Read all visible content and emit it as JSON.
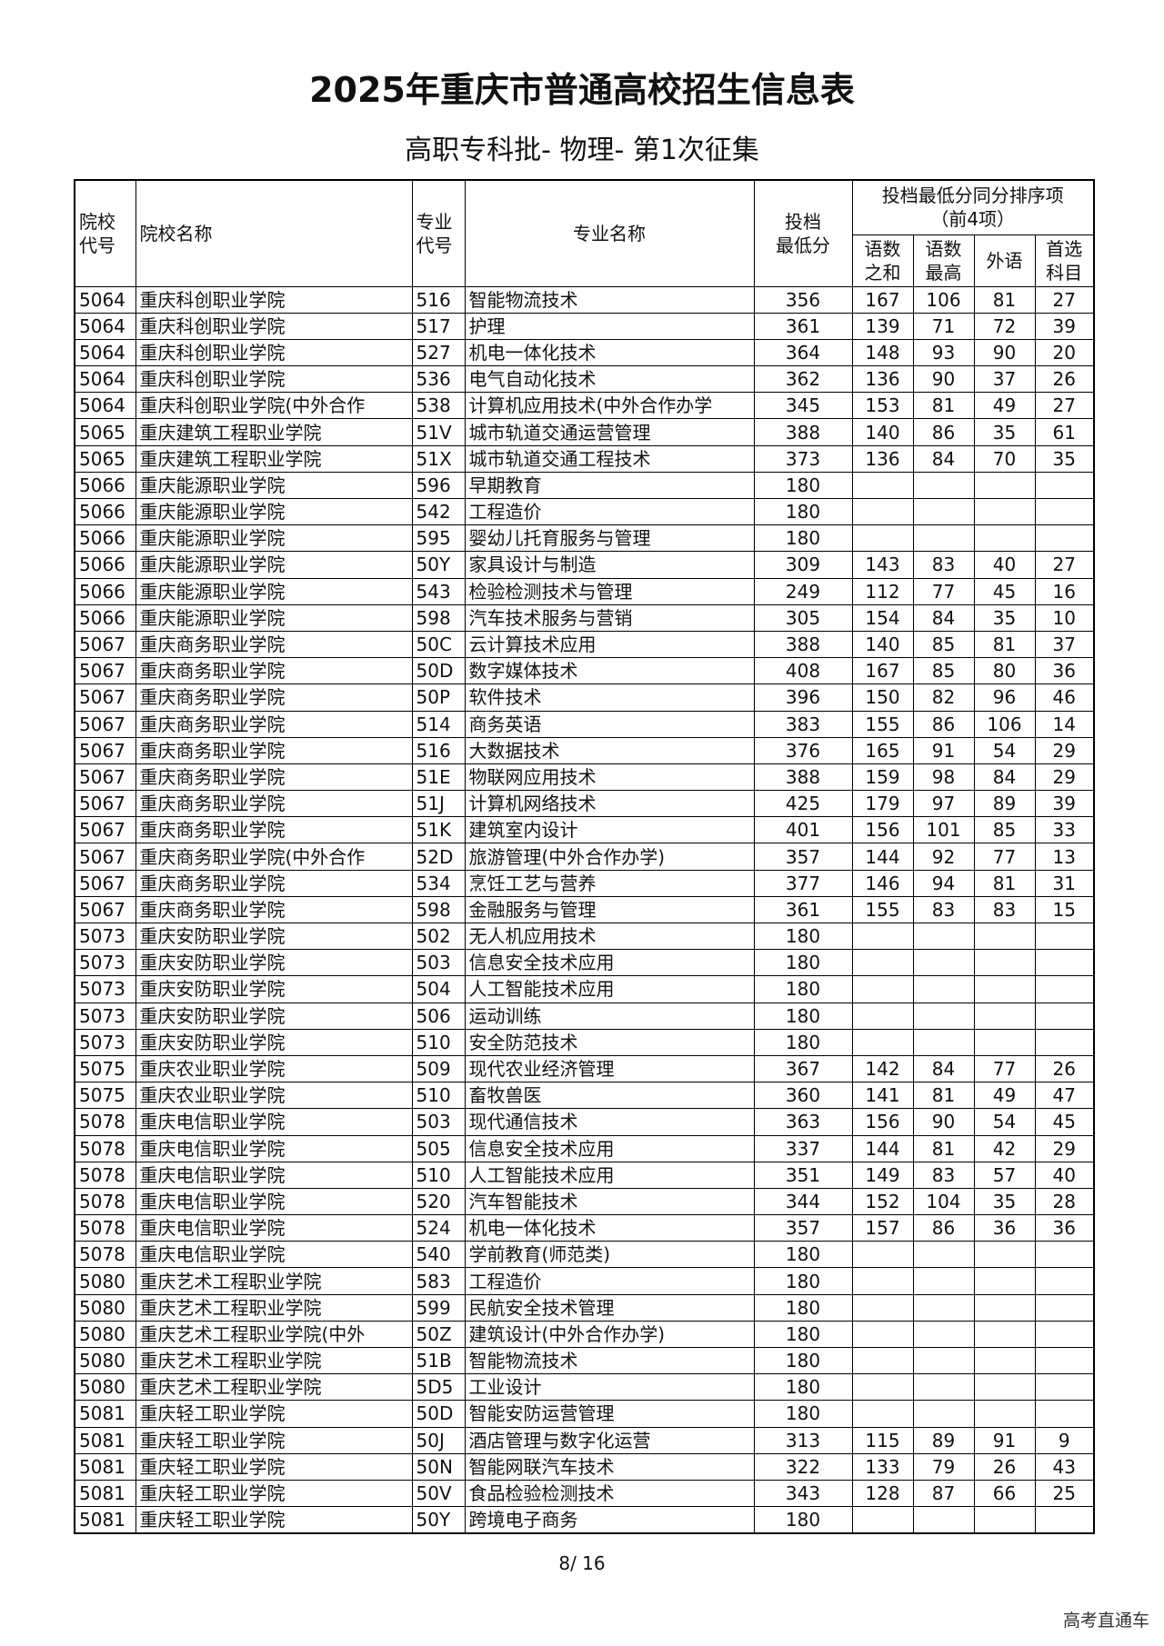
{
  "header": {
    "title": "2025年重庆市普通高校招生信息表",
    "subtitle": "高职专科批- 物理- 第1次征集"
  },
  "table": {
    "columns": {
      "school_code": "院校\n代号",
      "school_name": "院校名称",
      "major_code": "专业\n代号",
      "major_name": "专业名称",
      "min_score": "投档\n最低分",
      "tie_group": "投档最低分同分排序项\n（前4项）",
      "sum_cm": "语数\n之和",
      "max_cm": "语数\n最高",
      "foreign": "外语",
      "elective": "首选\n科目"
    },
    "rows": [
      [
        "5064",
        "重庆科创职业学院",
        "516",
        "智能物流技术",
        356,
        167,
        106,
        81,
        27
      ],
      [
        "5064",
        "重庆科创职业学院",
        "517",
        "护理",
        361,
        139,
        71,
        72,
        39
      ],
      [
        "5064",
        "重庆科创职业学院",
        "527",
        "机电一体化技术",
        364,
        148,
        93,
        90,
        20
      ],
      [
        "5064",
        "重庆科创职业学院",
        "536",
        "电气自动化技术",
        362,
        136,
        90,
        37,
        26
      ],
      [
        "5064",
        "重庆科创职业学院(中外合作",
        "538",
        "计算机应用技术(中外合作办学",
        345,
        153,
        81,
        49,
        27
      ],
      [
        "5065",
        "重庆建筑工程职业学院",
        "51V",
        "城市轨道交通运营管理",
        388,
        140,
        86,
        35,
        61
      ],
      [
        "5065",
        "重庆建筑工程职业学院",
        "51X",
        "城市轨道交通工程技术",
        373,
        136,
        84,
        70,
        35
      ],
      [
        "5066",
        "重庆能源职业学院",
        "596",
        "早期教育",
        180
      ],
      [
        "5066",
        "重庆能源职业学院",
        "542",
        "工程造价",
        180
      ],
      [
        "5066",
        "重庆能源职业学院",
        "595",
        "婴幼儿托育服务与管理",
        180
      ],
      [
        "5066",
        "重庆能源职业学院",
        "50Y",
        "家具设计与制造",
        309,
        143,
        83,
        40,
        27
      ],
      [
        "5066",
        "重庆能源职业学院",
        "543",
        "检验检测技术与管理",
        249,
        112,
        77,
        45,
        16
      ],
      [
        "5066",
        "重庆能源职业学院",
        "598",
        "汽车技术服务与营销",
        305,
        154,
        84,
        35,
        10
      ],
      [
        "5067",
        "重庆商务职业学院",
        "50C",
        "云计算技术应用",
        388,
        140,
        85,
        81,
        37
      ],
      [
        "5067",
        "重庆商务职业学院",
        "50D",
        "数字媒体技术",
        408,
        167,
        85,
        80,
        36
      ],
      [
        "5067",
        "重庆商务职业学院",
        "50P",
        "软件技术",
        396,
        150,
        82,
        96,
        46
      ],
      [
        "5067",
        "重庆商务职业学院",
        "514",
        "商务英语",
        383,
        155,
        86,
        106,
        14
      ],
      [
        "5067",
        "重庆商务职业学院",
        "516",
        "大数据技术",
        376,
        165,
        91,
        54,
        29
      ],
      [
        "5067",
        "重庆商务职业学院",
        "51E",
        "物联网应用技术",
        388,
        159,
        98,
        84,
        29
      ],
      [
        "5067",
        "重庆商务职业学院",
        "51J",
        "计算机网络技术",
        425,
        179,
        97,
        89,
        39
      ],
      [
        "5067",
        "重庆商务职业学院",
        "51K",
        "建筑室内设计",
        401,
        156,
        101,
        85,
        33
      ],
      [
        "5067",
        "重庆商务职业学院(中外合作",
        "52D",
        "旅游管理(中外合作办学)",
        357,
        144,
        92,
        77,
        13
      ],
      [
        "5067",
        "重庆商务职业学院",
        "534",
        "烹饪工艺与营养",
        377,
        146,
        94,
        81,
        31
      ],
      [
        "5067",
        "重庆商务职业学院",
        "598",
        "金融服务与管理",
        361,
        155,
        83,
        83,
        15
      ],
      [
        "5073",
        "重庆安防职业学院",
        "502",
        "无人机应用技术",
        180
      ],
      [
        "5073",
        "重庆安防职业学院",
        "503",
        "信息安全技术应用",
        180
      ],
      [
        "5073",
        "重庆安防职业学院",
        "504",
        "人工智能技术应用",
        180
      ],
      [
        "5073",
        "重庆安防职业学院",
        "506",
        "运动训练",
        180
      ],
      [
        "5073",
        "重庆安防职业学院",
        "510",
        "安全防范技术",
        180
      ],
      [
        "5075",
        "重庆农业职业学院",
        "509",
        "现代农业经济管理",
        367,
        142,
        84,
        77,
        26
      ],
      [
        "5075",
        "重庆农业职业学院",
        "510",
        "畜牧兽医",
        360,
        141,
        81,
        49,
        47
      ],
      [
        "5078",
        "重庆电信职业学院",
        "503",
        "现代通信技术",
        363,
        156,
        90,
        54,
        45
      ],
      [
        "5078",
        "重庆电信职业学院",
        "505",
        "信息安全技术应用",
        337,
        144,
        81,
        42,
        29
      ],
      [
        "5078",
        "重庆电信职业学院",
        "510",
        "人工智能技术应用",
        351,
        149,
        83,
        57,
        40
      ],
      [
        "5078",
        "重庆电信职业学院",
        "520",
        "汽车智能技术",
        344,
        152,
        104,
        35,
        28
      ],
      [
        "5078",
        "重庆电信职业学院",
        "524",
        "机电一体化技术",
        357,
        157,
        86,
        36,
        36
      ],
      [
        "5078",
        "重庆电信职业学院",
        "540",
        "学前教育(师范类)",
        180
      ],
      [
        "5080",
        "重庆艺术工程职业学院",
        "583",
        "工程造价",
        180
      ],
      [
        "5080",
        "重庆艺术工程职业学院",
        "599",
        "民航安全技术管理",
        180
      ],
      [
        "5080",
        "重庆艺术工程职业学院(中外",
        "50Z",
        "建筑设计(中外合作办学)",
        180
      ],
      [
        "5080",
        "重庆艺术工程职业学院",
        "51B",
        "智能物流技术",
        180
      ],
      [
        "5080",
        "重庆艺术工程职业学院",
        "5D5",
        "工业设计",
        180
      ],
      [
        "5081",
        "重庆轻工职业学院",
        "50D",
        "智能安防运营管理",
        180
      ],
      [
        "5081",
        "重庆轻工职业学院",
        "50J",
        "酒店管理与数字化运营",
        313,
        115,
        89,
        91,
        9
      ],
      [
        "5081",
        "重庆轻工职业学院",
        "50N",
        "智能网联汽车技术",
        322,
        133,
        79,
        26,
        43
      ],
      [
        "5081",
        "重庆轻工职业学院",
        "50V",
        "食品检验检测技术",
        343,
        128,
        87,
        66,
        25
      ],
      [
        "5081",
        "重庆轻工职业学院",
        "50Y",
        "跨境电子商务",
        180
      ]
    ]
  },
  "footer": {
    "page": "8/ 16",
    "brand": "高考直通车"
  }
}
